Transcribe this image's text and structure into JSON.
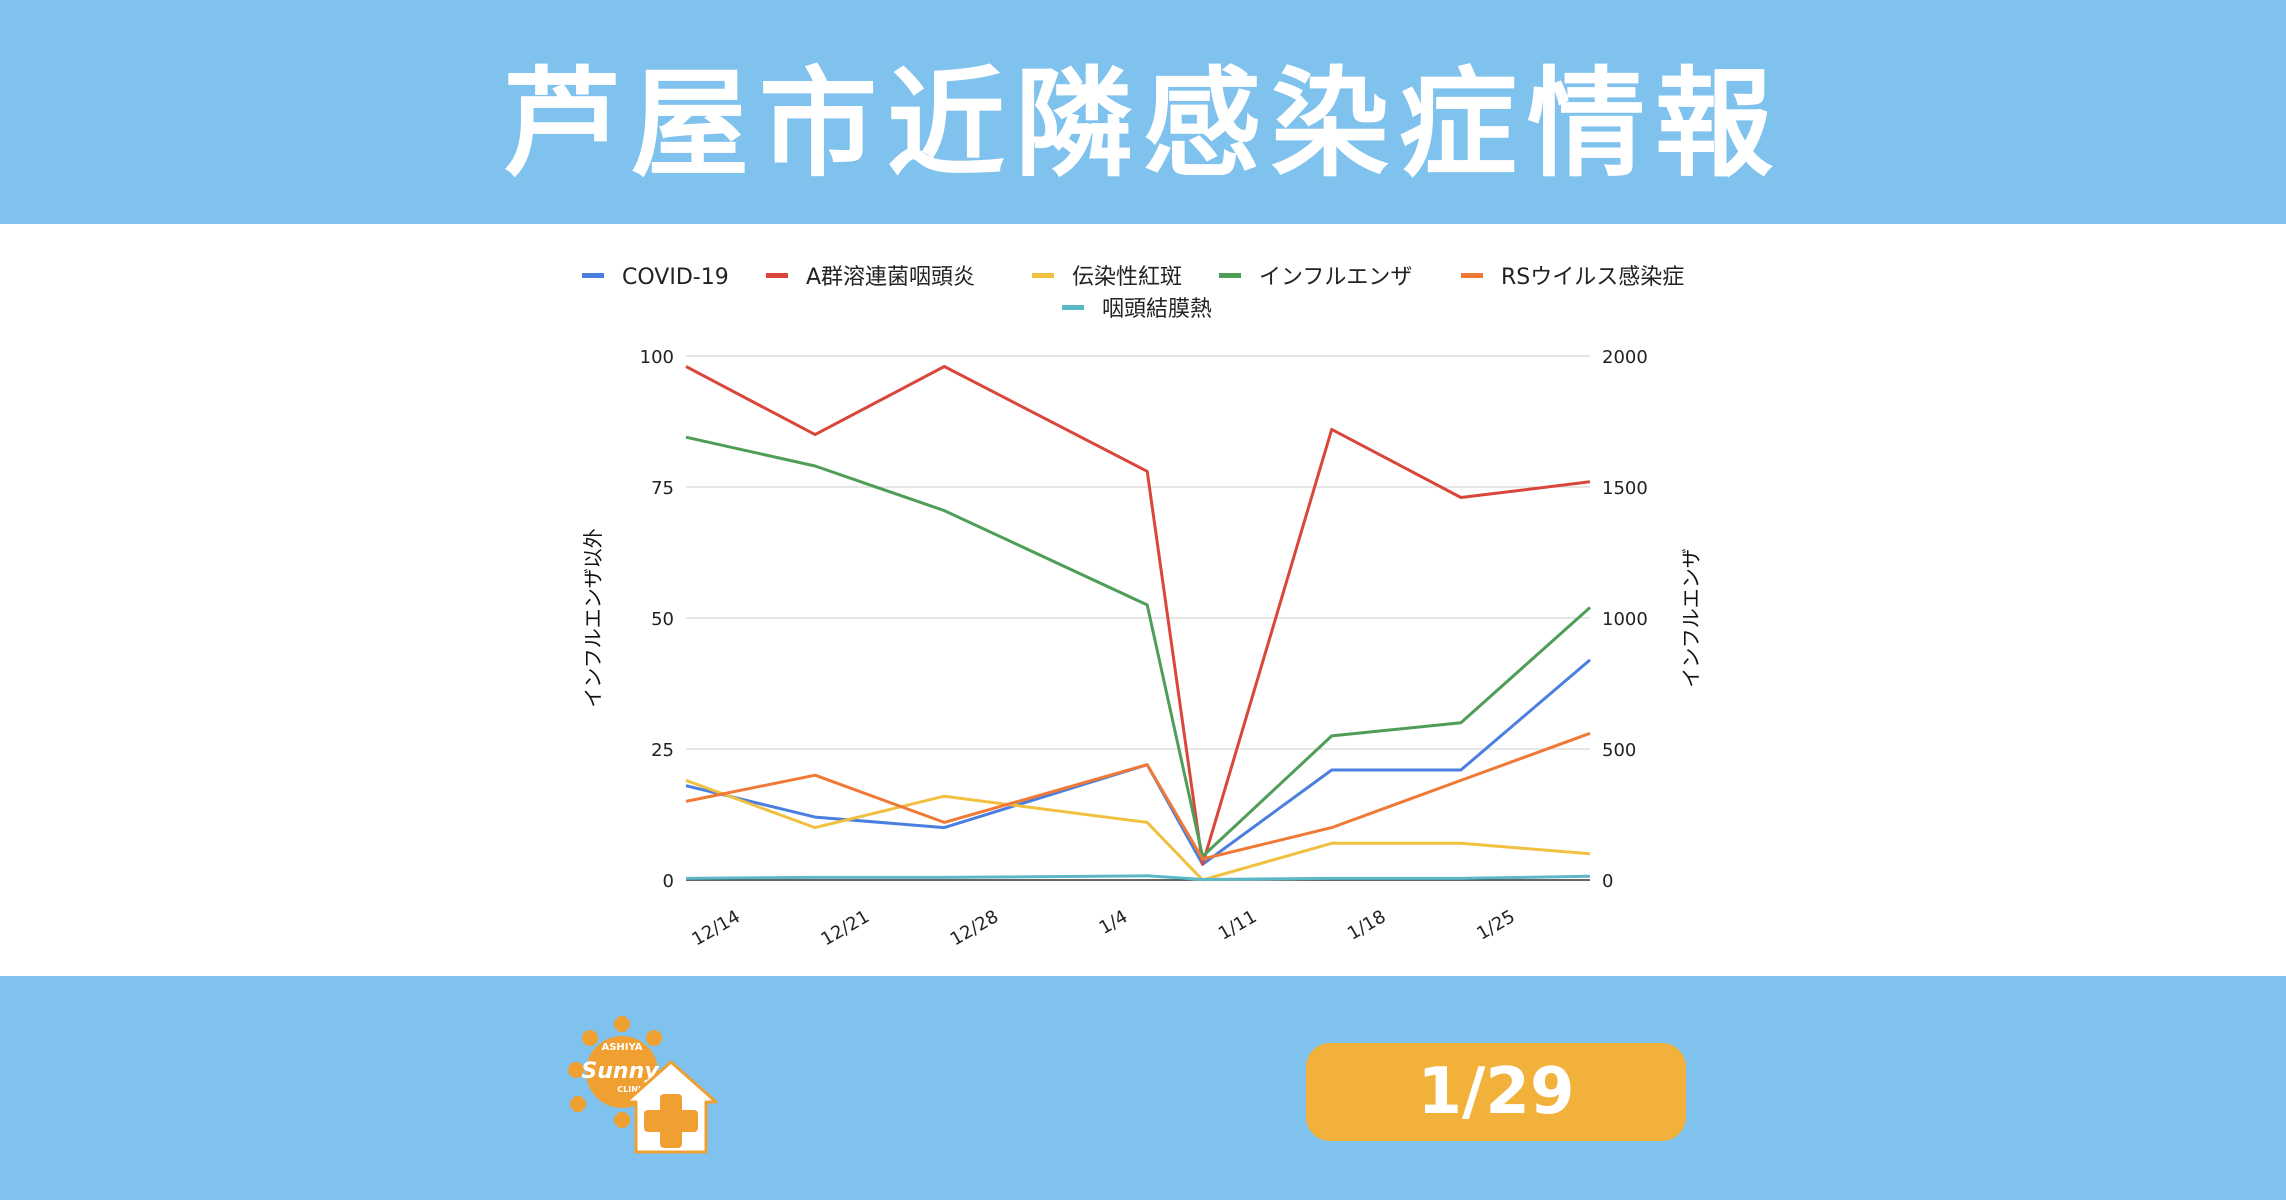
{
  "header": {
    "title": "芦屋市近隣感染症情報"
  },
  "badge": {
    "date": "1/29"
  },
  "logo": {
    "text_main": "Sunny",
    "text_top": "ASHIYA",
    "text_bottom": "CLINIC"
  },
  "colors": {
    "background": "#80c2ee",
    "badge": "#f2b13a",
    "logo_orange": "#f0a030"
  },
  "chart_data": {
    "type": "line",
    "title": "",
    "x": [
      "12/11",
      "12/18",
      "12/25",
      "1/1",
      "1/8",
      "1/15",
      "1/22",
      "1/29"
    ],
    "xticks": [
      "12/14",
      "12/21",
      "12/28",
      "1/4",
      "1/11",
      "1/18",
      "1/25"
    ],
    "ylabel_left": "インフルエンザ以外",
    "ylabel_right": "インフルエンザ",
    "ylim_left": [
      0,
      100
    ],
    "ylim_right": [
      0,
      2000
    ],
    "yticks_left": [
      0,
      25,
      50,
      75,
      100
    ],
    "yticks_right": [
      0,
      500,
      1000,
      1500,
      2000
    ],
    "grid": true,
    "legend_position": "top",
    "series": [
      {
        "name": "COVID-19",
        "color": "#4a7fe0",
        "axis": "left",
        "points": [
          [
            "12/11",
            18
          ],
          [
            "12/18",
            12
          ],
          [
            "12/25",
            10
          ],
          [
            "1/5",
            22
          ],
          [
            "1/8",
            3
          ],
          [
            "1/15",
            21
          ],
          [
            "1/22",
            21
          ],
          [
            "1/29",
            42
          ]
        ]
      },
      {
        "name": "A群溶連菌咽頭炎",
        "color": "#d9473b",
        "axis": "left",
        "points": [
          [
            "12/11",
            98
          ],
          [
            "12/18",
            85
          ],
          [
            "12/25",
            98
          ],
          [
            "1/5",
            78
          ],
          [
            "1/8",
            3
          ],
          [
            "1/15",
            86
          ],
          [
            "1/22",
            73
          ],
          [
            "1/29",
            76
          ]
        ]
      },
      {
        "name": "伝染性紅斑",
        "color": "#f2c040",
        "axis": "left",
        "points": [
          [
            "12/11",
            19
          ],
          [
            "12/18",
            10
          ],
          [
            "12/25",
            16
          ],
          [
            "1/5",
            11
          ],
          [
            "1/8",
            0
          ],
          [
            "1/15",
            7
          ],
          [
            "1/22",
            7
          ],
          [
            "1/29",
            5
          ]
        ]
      },
      {
        "name": "インフルエンザ",
        "color": "#4e9e57",
        "axis": "right",
        "points": [
          [
            "12/11",
            1690
          ],
          [
            "12/18",
            1580
          ],
          [
            "12/25",
            1410
          ],
          [
            "1/5",
            1050
          ],
          [
            "1/8",
            90
          ],
          [
            "1/15",
            550
          ],
          [
            "1/22",
            600
          ],
          [
            "1/29",
            1040
          ]
        ]
      },
      {
        "name": "RSウイルス感染症",
        "color": "#ef7935",
        "axis": "left",
        "points": [
          [
            "12/11",
            15
          ],
          [
            "12/18",
            20
          ],
          [
            "12/25",
            11
          ],
          [
            "1/5",
            22
          ],
          [
            "1/8",
            4
          ],
          [
            "1/15",
            10
          ],
          [
            "1/22",
            19
          ],
          [
            "1/29",
            28
          ]
        ]
      },
      {
        "name": "咽頭結膜熱",
        "color": "#5bb8c7",
        "axis": "left",
        "points": [
          [
            "12/11",
            0.3
          ],
          [
            "12/18",
            0.5
          ],
          [
            "12/25",
            0.5
          ],
          [
            "1/5",
            0.8
          ],
          [
            "1/8",
            0.1
          ],
          [
            "1/15",
            0.3
          ],
          [
            "1/22",
            0.3
          ],
          [
            "1/29",
            0.7
          ]
        ]
      }
    ]
  }
}
